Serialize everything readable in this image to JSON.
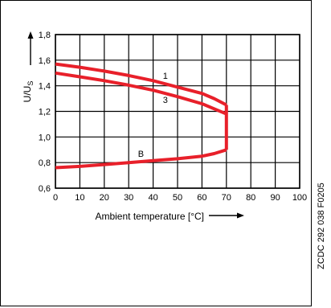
{
  "chart_data": {
    "type": "line",
    "xlabel": "Ambient temperature [°C]",
    "ylabel_main": "U/U",
    "ylabel_sub": "S",
    "xlim": [
      0,
      100
    ],
    "ylim": [
      0.6,
      1.8
    ],
    "x_ticks": [
      0,
      10,
      20,
      30,
      40,
      50,
      60,
      70,
      80,
      90,
      100
    ],
    "x_tick_labels": [
      "0",
      "10",
      "20",
      "30",
      "40",
      "50",
      "60",
      "70",
      "80",
      "90",
      "100"
    ],
    "y_ticks": [
      0.6,
      0.8,
      1.0,
      1.2,
      1.4,
      1.6,
      1.8
    ],
    "y_tick_labels": [
      "0,6",
      "0,8",
      "1,0",
      "1,2",
      "1,4",
      "1,6",
      "1,8"
    ],
    "grid": true,
    "line_color": "#e8202a",
    "series": [
      {
        "name": "1",
        "x": [
          0,
          10,
          20,
          30,
          40,
          50,
          60,
          65,
          70
        ],
        "y": [
          1.57,
          1.545,
          1.515,
          1.48,
          1.44,
          1.39,
          1.34,
          1.3,
          1.25
        ]
      },
      {
        "name": "3",
        "x": [
          0,
          10,
          20,
          30,
          40,
          50,
          60,
          65,
          70
        ],
        "y": [
          1.5,
          1.47,
          1.44,
          1.405,
          1.365,
          1.315,
          1.26,
          1.22,
          1.18
        ]
      },
      {
        "name": "B",
        "x": [
          0,
          10,
          20,
          30,
          40,
          50,
          60,
          65,
          70
        ],
        "y": [
          0.76,
          0.77,
          0.785,
          0.8,
          0.815,
          0.83,
          0.85,
          0.87,
          0.9
        ]
      }
    ],
    "connector": {
      "x": 70,
      "y": [
        0.9,
        1.25
      ]
    },
    "series_labels": [
      {
        "text": "1",
        "x": 45,
        "y": 1.48
      },
      {
        "text": "3",
        "x": 45,
        "y": 1.29
      },
      {
        "text": "B",
        "x": 35,
        "y": 0.87
      }
    ]
  },
  "side_code": "ZCDC 292 038 F0205"
}
